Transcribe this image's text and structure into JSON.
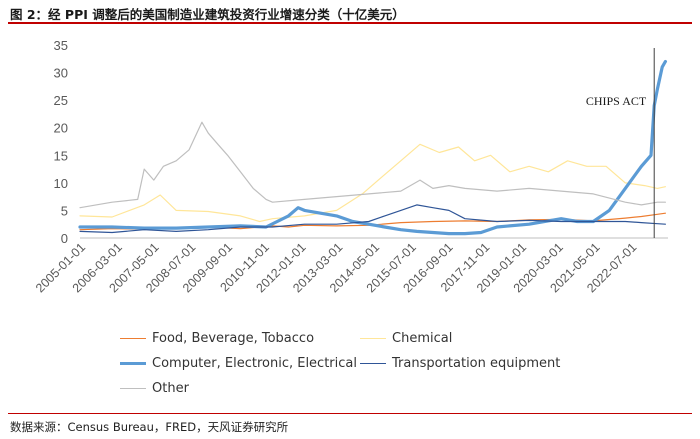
{
  "title": "图 2：经 PPI 调整后的美国制造业建筑投资行业增速分类（十亿美元）",
  "source": "数据来源：Census Bureau，FRED，天风证券研究所",
  "chart_data": {
    "type": "line",
    "ylim": [
      0,
      35
    ],
    "yticks": [
      "0",
      "5",
      "10",
      "15",
      "20",
      "25",
      "30",
      "35"
    ],
    "xlim": [
      2005.0,
      2023.33
    ],
    "xticks": [
      "2005-01-01",
      "2006-03-01",
      "2007-05-01",
      "2008-07-01",
      "2009-09-01",
      "2010-11-01",
      "2012-01-01",
      "2013-03-01",
      "2014-05-01",
      "2015-07-01",
      "2016-09-01",
      "2017-11-01",
      "2019-01-01",
      "2020-03-01",
      "2021-05-01",
      "2022-07-01"
    ],
    "annotation": {
      "label": "CHIPS ACT",
      "x": 2022.9
    },
    "series": [
      {
        "name": "Food, Beverage, Tobacco",
        "color": "#ED7D31",
        "width": 1.2,
        "x": [
          2005.0,
          2006.0,
          2007.0,
          2008.0,
          2009.0,
          2010.0,
          2011.0,
          2011.5,
          2012.0,
          2013.0,
          2014.0,
          2015.0,
          2016.0,
          2017.0,
          2018.0,
          2019.0,
          2020.0,
          2021.0,
          2022.0,
          2022.5,
          2023.0,
          2023.25
        ],
        "y": [
          1.5,
          1.7,
          1.6,
          1.8,
          2.0,
          1.7,
          2.2,
          2.0,
          2.3,
          2.2,
          2.3,
          2.8,
          3.0,
          3.1,
          3.0,
          3.3,
          3.4,
          3.1,
          3.6,
          3.9,
          4.3,
          4.5
        ]
      },
      {
        "name": "Chemical",
        "color": "#FFE699",
        "width": 1.2,
        "x": [
          2005.0,
          2006.0,
          2007.0,
          2007.5,
          2008.0,
          2009.0,
          2010.0,
          2010.6,
          2011.0,
          2012.0,
          2013.0,
          2013.8,
          2014.4,
          2015.0,
          2015.6,
          2016.2,
          2016.8,
          2017.3,
          2017.8,
          2018.4,
          2019.0,
          2019.6,
          2020.2,
          2020.8,
          2021.4,
          2022.0,
          2022.6,
          2023.0,
          2023.25
        ],
        "y": [
          4.0,
          3.8,
          6.0,
          7.8,
          5.0,
          4.8,
          4.0,
          3.0,
          3.5,
          4.0,
          5.0,
          8.0,
          11.0,
          14.0,
          17.0,
          15.5,
          16.5,
          14.0,
          15.0,
          12.0,
          13.0,
          12.0,
          14.0,
          13.0,
          13.0,
          10.0,
          9.5,
          9.0,
          9.3
        ]
      },
      {
        "name": "Computer, Electronic, Electrical",
        "color": "#5B9BD5",
        "width": 3.2,
        "x": [
          2005.0,
          2006.0,
          2007.0,
          2008.0,
          2009.0,
          2010.0,
          2010.8,
          2011.5,
          2011.8,
          2012.0,
          2012.5,
          2013.0,
          2013.5,
          2014.0,
          2014.5,
          2015.0,
          2015.5,
          2016.0,
          2016.5,
          2017.0,
          2017.5,
          2018.0,
          2019.0,
          2020.0,
          2020.5,
          2021.0,
          2021.5,
          2022.0,
          2022.5,
          2022.8,
          2022.9,
          2023.0,
          2023.15,
          2023.25
        ],
        "y": [
          2.0,
          2.0,
          1.8,
          1.8,
          2.0,
          2.2,
          2.0,
          4.0,
          5.5,
          5.0,
          4.5,
          4.0,
          3.0,
          2.5,
          2.0,
          1.5,
          1.2,
          1.0,
          0.8,
          0.8,
          1.0,
          2.0,
          2.5,
          3.5,
          3.0,
          3.0,
          5.0,
          9.0,
          13.0,
          15.0,
          24.0,
          27.0,
          31.0,
          32.0
        ]
      },
      {
        "name": "Transportation equipment",
        "color": "#2F5597",
        "width": 1.2,
        "x": [
          2005.0,
          2006.0,
          2007.0,
          2008.0,
          2009.0,
          2010.0,
          2011.0,
          2012.0,
          2013.0,
          2014.0,
          2014.5,
          2015.0,
          2015.5,
          2016.0,
          2016.5,
          2017.0,
          2018.0,
          2019.0,
          2020.0,
          2021.0,
          2022.0,
          2022.5,
          2023.0,
          2023.25
        ],
        "y": [
          1.2,
          1.0,
          1.5,
          1.2,
          1.5,
          2.0,
          2.0,
          2.5,
          2.5,
          3.0,
          4.0,
          5.0,
          6.0,
          5.5,
          5.0,
          3.5,
          3.0,
          3.2,
          3.0,
          3.0,
          3.0,
          2.8,
          2.6,
          2.5
        ]
      },
      {
        "name": "Other",
        "color": "#BFBFBF",
        "width": 1.2,
        "x": [
          2005.0,
          2006.0,
          2006.8,
          2007.0,
          2007.3,
          2007.6,
          2008.0,
          2008.4,
          2008.8,
          2009.0,
          2009.3,
          2009.6,
          2010.0,
          2010.4,
          2010.8,
          2011.0,
          2012.0,
          2013.0,
          2014.0,
          2015.0,
          2015.6,
          2016.0,
          2016.5,
          2017.0,
          2018.0,
          2019.0,
          2020.0,
          2021.0,
          2022.0,
          2022.5,
          2023.0,
          2023.25
        ],
        "y": [
          5.5,
          6.5,
          7.0,
          12.5,
          10.5,
          13.0,
          14.0,
          16.0,
          21.0,
          19.0,
          17.0,
          15.0,
          12.0,
          9.0,
          7.0,
          6.5,
          7.0,
          7.5,
          8.0,
          8.5,
          10.5,
          9.0,
          9.5,
          9.0,
          8.5,
          9.0,
          8.5,
          8.0,
          6.5,
          6.0,
          6.5,
          6.5
        ]
      }
    ]
  }
}
